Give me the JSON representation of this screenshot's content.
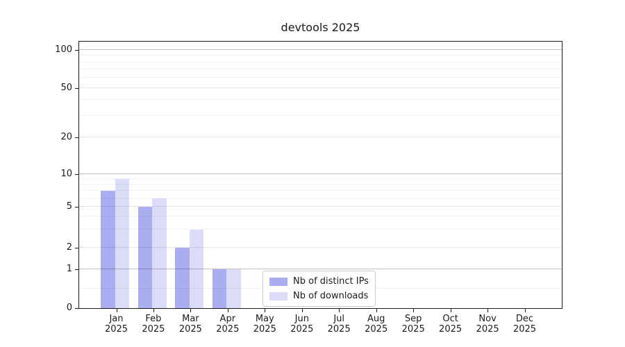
{
  "title": "devtools 2025",
  "chart_data": {
    "type": "bar",
    "title": "devtools 2025",
    "x_ticks": [
      {
        "month": "Jan",
        "year": "2025"
      },
      {
        "month": "Feb",
        "year": "2025"
      },
      {
        "month": "Mar",
        "year": "2025"
      },
      {
        "month": "Apr",
        "year": "2025"
      },
      {
        "month": "May",
        "year": "2025"
      },
      {
        "month": "Jun",
        "year": "2025"
      },
      {
        "month": "Jul",
        "year": "2025"
      },
      {
        "month": "Aug",
        "year": "2025"
      },
      {
        "month": "Sep",
        "year": "2025"
      },
      {
        "month": "Oct",
        "year": "2025"
      },
      {
        "month": "Nov",
        "year": "2025"
      },
      {
        "month": "Dec",
        "year": "2025"
      }
    ],
    "series": [
      {
        "name": "Nb of distinct IPs",
        "color": "#aaadf0",
        "values": [
          7,
          5,
          2,
          1,
          0,
          0,
          0,
          0,
          0,
          0,
          0,
          0
        ]
      },
      {
        "name": "Nb of downloads",
        "color": "#dbdcf7",
        "values": [
          9,
          6,
          3,
          1,
          0,
          0,
          0,
          0,
          0,
          0,
          0,
          0
        ]
      }
    ],
    "y_axis": {
      "scale": "quasi-log with linear zero region",
      "tick_values": [
        0,
        1,
        2,
        5,
        10,
        20,
        50,
        100
      ],
      "tick_labels": [
        "0",
        "1",
        "2",
        "5",
        "10",
        "20",
        "50",
        "100"
      ],
      "anchors": [
        [
          0,
          0
        ],
        [
          1,
          0.145
        ],
        [
          2,
          0.2267
        ],
        [
          5,
          0.3808
        ],
        [
          10,
          0.5026
        ],
        [
          20,
          0.6399
        ],
        [
          50,
          0.8264
        ],
        [
          100,
          0.9689
        ]
      ],
      "minor_tick_values": [
        0.5,
        3,
        4,
        6,
        7,
        8,
        9,
        30,
        40,
        60,
        70,
        80,
        90
      ],
      "emphasized_tick_values": [
        1,
        10,
        100
      ]
    },
    "grid": true,
    "legend_position": "lower center"
  },
  "colors": {
    "bar_distinct_ips": "#aaadf0",
    "bar_downloads": "#dbdcf7",
    "axis": "#1a1a1a",
    "text": "#1a1a1a",
    "grid_strong": "rgba(0,0,0,0.24)",
    "grid_major": "rgba(0,0,0,0.10)",
    "grid_minor": "rgba(0,0,0,0.05)",
    "legend_border": "#cbcbcb",
    "background": "#ffffff"
  }
}
